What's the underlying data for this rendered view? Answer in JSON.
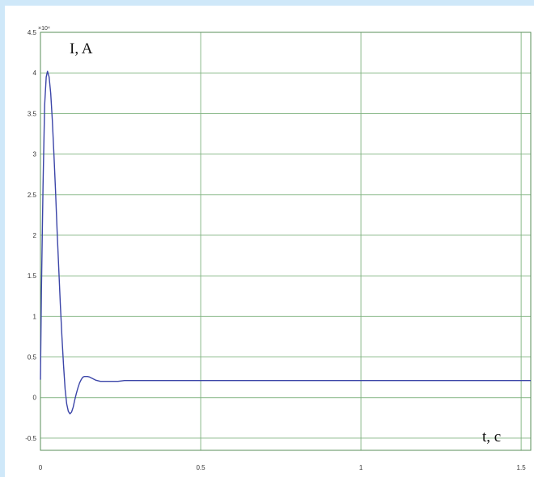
{
  "chart_data": {
    "type": "line",
    "title": "",
    "ylabel": "I, A",
    "xlabel": "t, c",
    "y_multiplier_label": "×10⁴",
    "xlim": [
      0,
      1.53
    ],
    "ylim": [
      -0.65,
      4.5
    ],
    "x_ticks": [
      0,
      0.5,
      1,
      1.5
    ],
    "x_tick_labels": [
      "0",
      "0.5",
      "1",
      "1.5"
    ],
    "y_ticks": [
      -0.5,
      0,
      0.5,
      1,
      1.5,
      2,
      2.5,
      3,
      3.5,
      4,
      4.5
    ],
    "y_tick_labels": [
      "-0.5",
      "0",
      "0.5",
      "1",
      "1.5",
      "2",
      "2.5",
      "3",
      "3.5",
      "4",
      "4.5"
    ],
    "grid": true,
    "series": [
      {
        "color": "#3b45a8",
        "x": [
          0,
          0.003,
          0.008,
          0.013,
          0.018,
          0.022,
          0.027,
          0.032,
          0.037,
          0.042,
          0.047,
          0.052,
          0.057,
          0.062,
          0.067,
          0.072,
          0.077,
          0.082,
          0.087,
          0.092,
          0.097,
          0.102,
          0.107,
          0.112,
          0.117,
          0.122,
          0.127,
          0.132,
          0.137,
          0.142,
          0.147,
          0.152,
          0.157,
          0.162,
          0.167,
          0.172,
          0.177,
          0.182,
          0.187,
          0.192,
          0.197,
          0.202,
          0.207,
          0.212,
          0.222,
          0.232,
          0.242,
          0.252,
          0.262,
          0.272,
          0.282,
          0.3,
          0.35,
          0.45,
          0.6,
          0.8,
          1.0,
          1.2,
          1.4,
          1.53
        ],
        "y": [
          0.22,
          1.3,
          2.6,
          3.6,
          3.95,
          4.02,
          3.95,
          3.75,
          3.42,
          3.0,
          2.55,
          2.05,
          1.6,
          1.15,
          0.75,
          0.4,
          0.1,
          -0.08,
          -0.17,
          -0.2,
          -0.18,
          -0.12,
          -0.03,
          0.05,
          0.12,
          0.18,
          0.22,
          0.25,
          0.26,
          0.26,
          0.26,
          0.255,
          0.245,
          0.235,
          0.225,
          0.215,
          0.21,
          0.205,
          0.2,
          0.2,
          0.2,
          0.2,
          0.2,
          0.2,
          0.2,
          0.2,
          0.2,
          0.205,
          0.21,
          0.21,
          0.21,
          0.21,
          0.21,
          0.21,
          0.21,
          0.21,
          0.21,
          0.21,
          0.21,
          0.21
        ]
      }
    ]
  }
}
